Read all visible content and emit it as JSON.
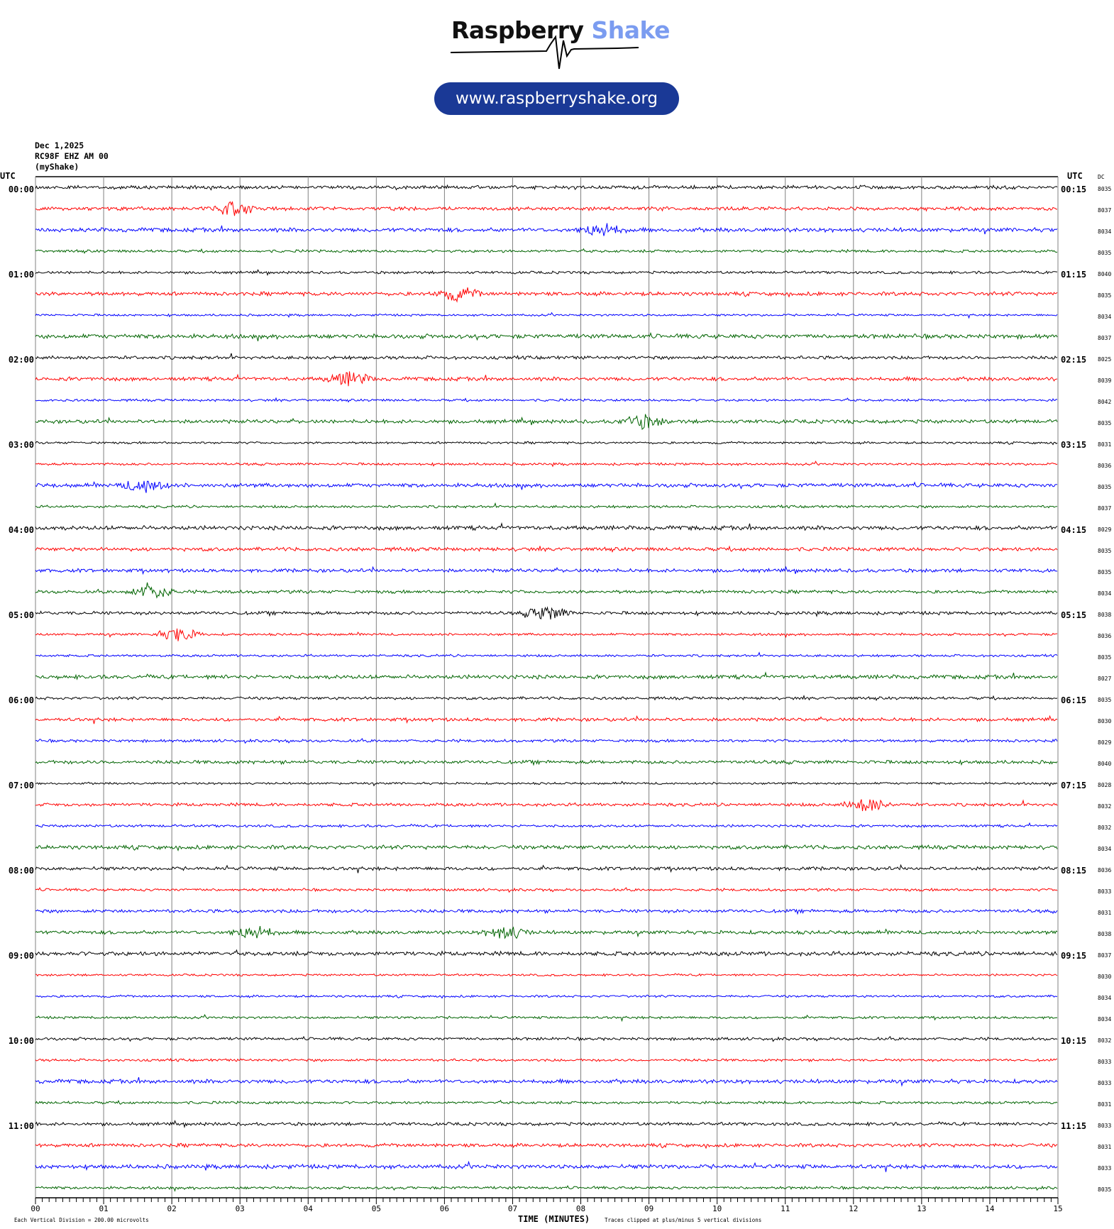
{
  "logo": {
    "word1": "Raspberry",
    "word2": "Shake",
    "url": "www.raspberryshake.org",
    "accent": "#7b9cf0",
    "pill_color": "#1a3996"
  },
  "header": {
    "date": "Dec 1,2025",
    "station": "RC98F EHZ AM 00",
    "network": "(myShake)"
  },
  "chart_data": {
    "type": "line",
    "title": "",
    "xlabel": "TIME (MINUTES)",
    "xlim": [
      0,
      15
    ],
    "x_ticks": [
      "00",
      "01",
      "02",
      "03",
      "04",
      "05",
      "06",
      "07",
      "08",
      "09",
      "10",
      "11",
      "12",
      "13",
      "14",
      "15"
    ],
    "left_axis_title": "UTC",
    "right_axis_title": "UTC",
    "dc_title": "DC",
    "grid": true,
    "colors": [
      "#000000",
      "#ff0000",
      "#0000ff",
      "#006400"
    ],
    "left_labels": [
      "00:00",
      "01:00",
      "02:00",
      "03:00",
      "04:00",
      "05:00",
      "06:00",
      "07:00",
      "08:00",
      "09:00",
      "10:00",
      "11:00"
    ],
    "right_labels": [
      "00:15",
      "01:15",
      "02:15",
      "03:15",
      "04:15",
      "05:15",
      "06:15",
      "07:15",
      "08:15",
      "09:15",
      "10:15",
      "11:15"
    ],
    "dc_values": [
      "8035",
      "8037",
      "8034",
      "8035",
      "8040",
      "8035",
      "8034",
      "8037",
      "8025",
      "8039",
      "8042",
      "8035",
      "8031",
      "8036",
      "8035",
      "8037",
      "8029",
      "8035",
      "8035",
      "8034",
      "8038",
      "8036",
      "8035",
      "8027",
      "8035",
      "8030",
      "8029",
      "8040",
      "8028",
      "8032",
      "8032",
      "8034",
      "8036",
      "8033",
      "8031",
      "8038",
      "8037",
      "8030",
      "8034",
      "8034",
      "8032",
      "8033",
      "8033",
      "8031",
      "8033",
      "8031",
      "8033",
      "8035"
    ],
    "bursts": [
      {
        "row": 1,
        "minute": 2.9
      },
      {
        "row": 2,
        "minute": 8.3
      },
      {
        "row": 5,
        "minute": 6.2
      },
      {
        "row": 9,
        "minute": 4.6
      },
      {
        "row": 11,
        "minute": 8.9
      },
      {
        "row": 14,
        "minute": 1.6
      },
      {
        "row": 19,
        "minute": 1.7
      },
      {
        "row": 20,
        "minute": 7.5
      },
      {
        "row": 21,
        "minute": 2.1
      },
      {
        "row": 29,
        "minute": 12.2
      },
      {
        "row": 35,
        "minute": 6.9
      },
      {
        "row": 35,
        "minute": 3.2
      }
    ],
    "scale_note": "Each Vertical Division =  200.00 microvolts",
    "clip_note": "Traces clipped at plus/minus 5 vertical divisions"
  }
}
